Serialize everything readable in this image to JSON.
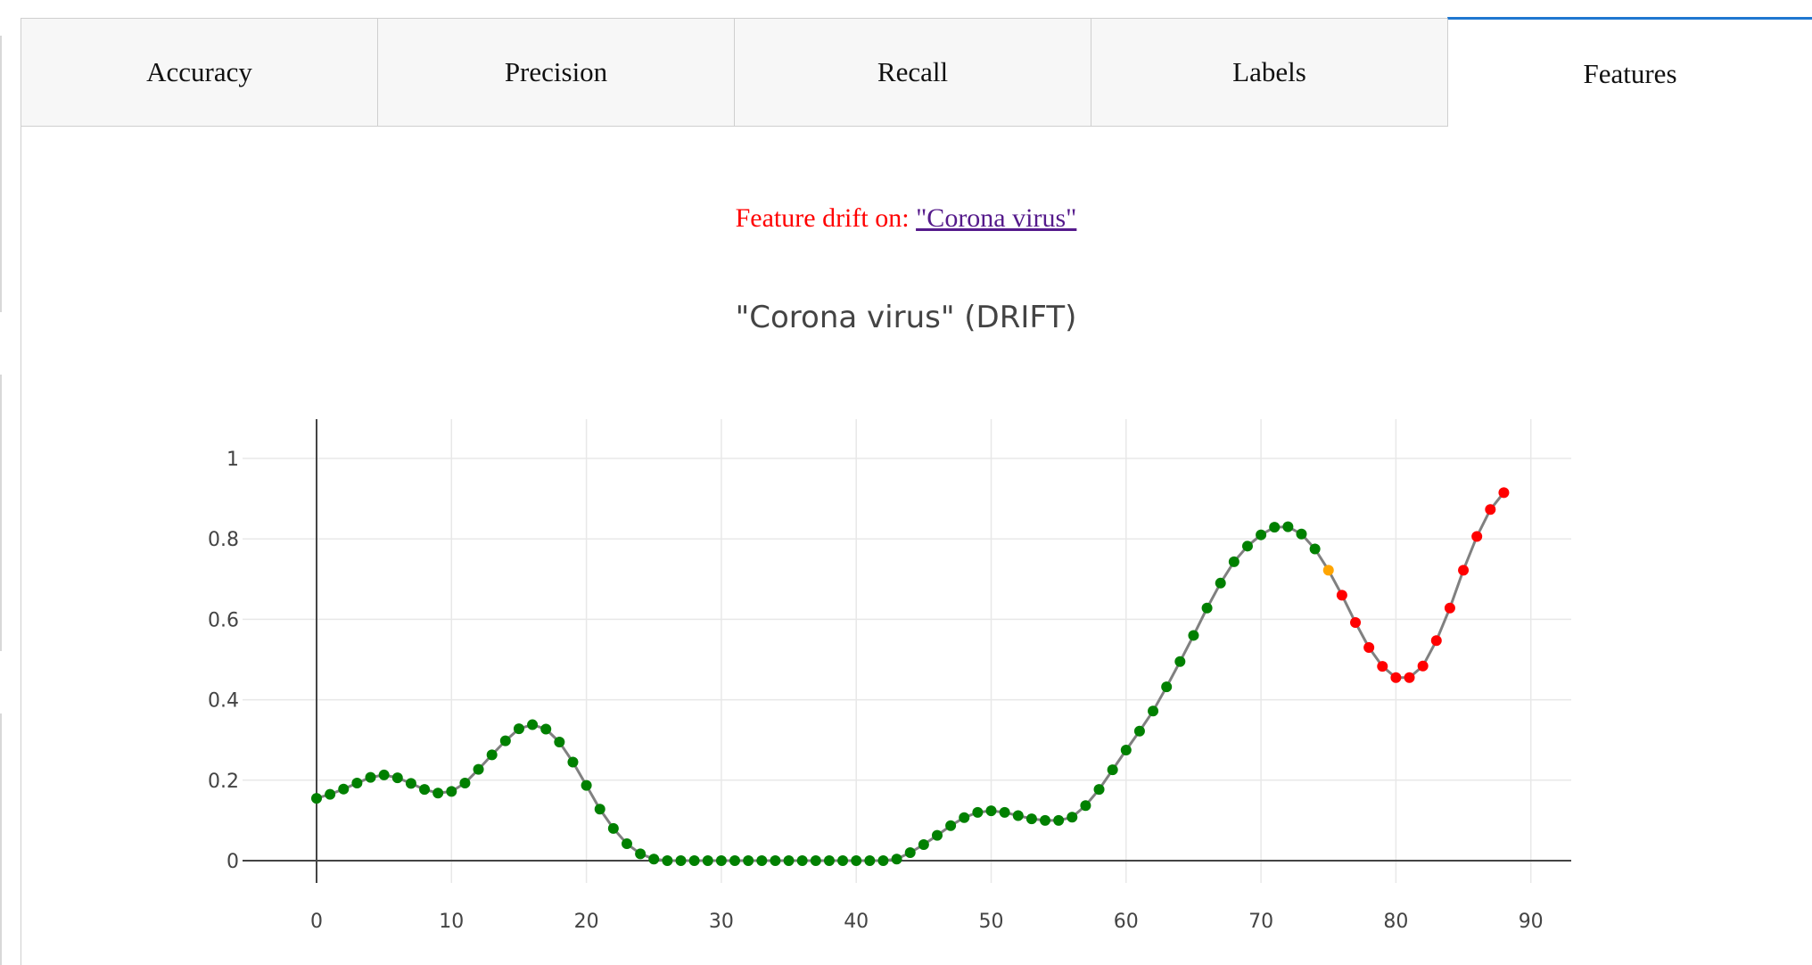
{
  "tabs": [
    {
      "label": "Accuracy",
      "active": false
    },
    {
      "label": "Precision",
      "active": false
    },
    {
      "label": "Recall",
      "active": false
    },
    {
      "label": "Labels",
      "active": false
    },
    {
      "label": "Features",
      "active": true
    }
  ],
  "drift": {
    "label": "Feature drift on: ",
    "link": "\"Corona virus\""
  },
  "colors": {
    "normal": "#008000",
    "warning": "#ffa500",
    "drift": "#ff0000",
    "line": "#808080",
    "tab_accent": "#1f77d0"
  },
  "chart_data": {
    "type": "line",
    "title": "\"Corona virus\" (DRIFT)",
    "xlabel": "",
    "ylabel": "",
    "xlim": [
      -5,
      93
    ],
    "ylim": [
      -0.03,
      1.1
    ],
    "x_ticks": [
      0,
      10,
      20,
      30,
      40,
      50,
      60,
      70,
      80,
      90
    ],
    "y_ticks": [
      0,
      0.2,
      0.4,
      0.6,
      0.8,
      1
    ],
    "y_tick_labels": [
      "0",
      "0.2",
      "0.4",
      "0.6",
      "0.8",
      "1"
    ],
    "grid": true,
    "x": [
      0,
      1,
      2,
      3,
      4,
      5,
      6,
      7,
      8,
      9,
      10,
      11,
      12,
      13,
      14,
      15,
      16,
      17,
      18,
      19,
      20,
      21,
      22,
      23,
      24,
      25,
      26,
      27,
      28,
      29,
      30,
      31,
      32,
      33,
      34,
      35,
      36,
      37,
      38,
      39,
      40,
      41,
      42,
      43,
      44,
      45,
      46,
      47,
      48,
      49,
      50,
      51,
      52,
      53,
      54,
      55,
      56,
      57,
      58,
      59,
      60,
      61,
      62,
      63,
      64,
      65,
      66,
      67,
      68,
      69,
      70,
      71,
      72,
      73,
      74,
      75,
      76,
      77,
      78,
      79,
      80,
      81,
      82,
      83,
      84,
      85,
      86,
      87,
      88
    ],
    "values": [
      0.155,
      0.165,
      0.178,
      0.193,
      0.207,
      0.213,
      0.206,
      0.192,
      0.177,
      0.168,
      0.172,
      0.193,
      0.227,
      0.263,
      0.298,
      0.328,
      0.338,
      0.327,
      0.295,
      0.245,
      0.187,
      0.128,
      0.08,
      0.042,
      0.017,
      0.004,
      0.0,
      0.0,
      0.0,
      0.0,
      0.0,
      0.0,
      0.0,
      0.0,
      0.0,
      0.0,
      0.0,
      0.0,
      0.0,
      0.0,
      0.0,
      0.0,
      0.0,
      0.004,
      0.02,
      0.04,
      0.063,
      0.087,
      0.107,
      0.12,
      0.124,
      0.12,
      0.112,
      0.104,
      0.1,
      0.1,
      0.108,
      0.137,
      0.177,
      0.226,
      0.275,
      0.322,
      0.372,
      0.432,
      0.495,
      0.56,
      0.628,
      0.69,
      0.743,
      0.782,
      0.81,
      0.829,
      0.83,
      0.812,
      0.775,
      0.722,
      0.66,
      0.592,
      0.53,
      0.483,
      0.455,
      0.455,
      0.484,
      0.547,
      0.628,
      0.722,
      0.806,
      0.873,
      0.915
    ],
    "point_status": [
      "normal",
      "normal",
      "normal",
      "normal",
      "normal",
      "normal",
      "normal",
      "normal",
      "normal",
      "normal",
      "normal",
      "normal",
      "normal",
      "normal",
      "normal",
      "normal",
      "normal",
      "normal",
      "normal",
      "normal",
      "normal",
      "normal",
      "normal",
      "normal",
      "normal",
      "normal",
      "normal",
      "normal",
      "normal",
      "normal",
      "normal",
      "normal",
      "normal",
      "normal",
      "normal",
      "normal",
      "normal",
      "normal",
      "normal",
      "normal",
      "normal",
      "normal",
      "normal",
      "normal",
      "normal",
      "normal",
      "normal",
      "normal",
      "normal",
      "normal",
      "normal",
      "normal",
      "normal",
      "normal",
      "normal",
      "normal",
      "normal",
      "normal",
      "normal",
      "normal",
      "normal",
      "normal",
      "normal",
      "normal",
      "normal",
      "normal",
      "normal",
      "normal",
      "normal",
      "normal",
      "normal",
      "normal",
      "normal",
      "normal",
      "normal",
      "warning",
      "drift",
      "drift",
      "drift",
      "drift",
      "drift",
      "drift",
      "drift",
      "drift",
      "drift",
      "drift",
      "drift",
      "drift",
      "drift"
    ]
  }
}
